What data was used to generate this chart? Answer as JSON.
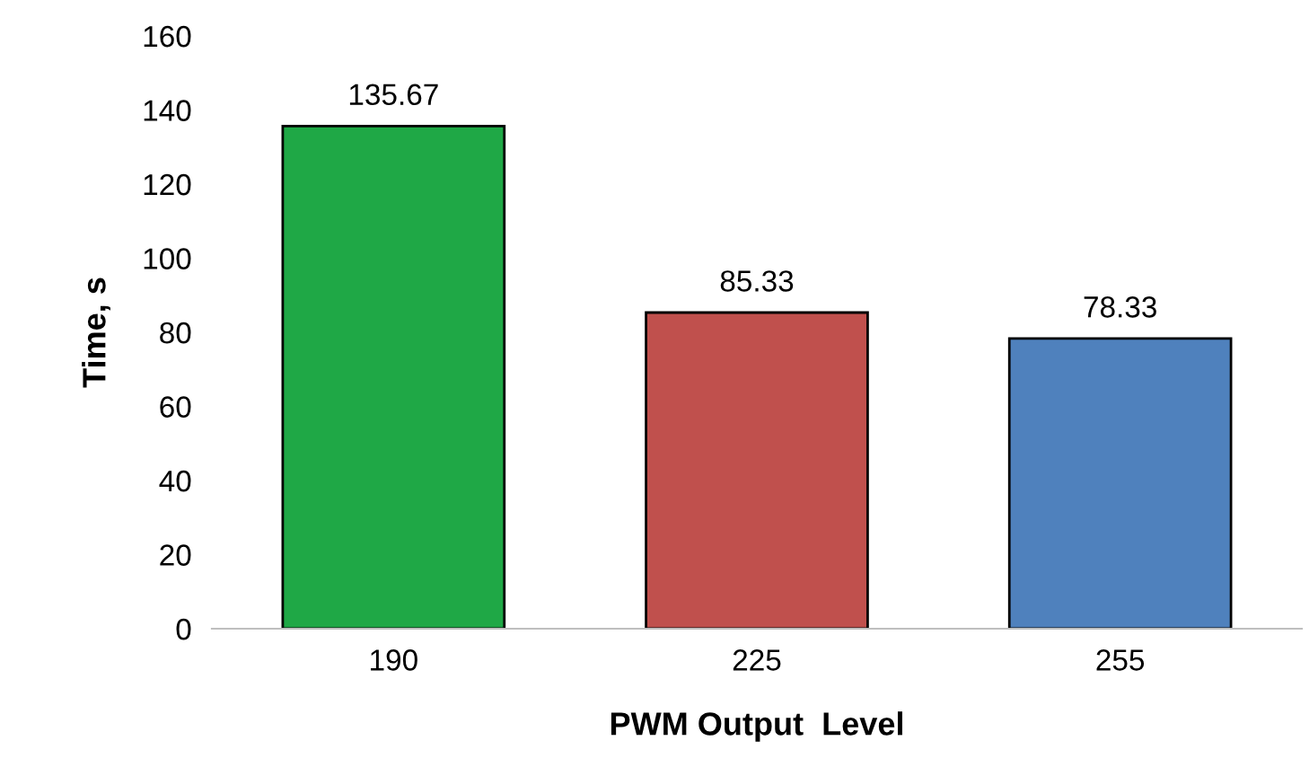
{
  "chart_data": {
    "type": "bar",
    "xlabel": "PWM Output  Level",
    "ylabel": "Time, s",
    "categories": [
      "190",
      "225",
      "255"
    ],
    "values": [
      135.67,
      85.33,
      78.33
    ],
    "colors": [
      "#1fa846",
      "#c0504d",
      "#4f81bd"
    ],
    "ylim": [
      0,
      160
    ],
    "yticks": [
      0,
      20,
      40,
      60,
      80,
      100,
      120,
      140,
      160
    ],
    "data_labels": true,
    "grid": false,
    "legend": false
  }
}
